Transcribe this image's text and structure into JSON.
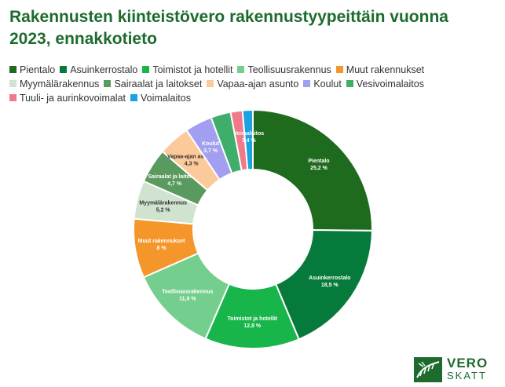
{
  "chart_data": {
    "type": "pie",
    "title": "Rakennusten kiinteistövero rakennustyypeittäin vuonna 2023, ennakkotieto",
    "legend_position": "top",
    "donut": true,
    "slices": [
      {
        "name": "Pientalo",
        "value": 25.2,
        "label": "25,2 %",
        "color": "#1e6b1e",
        "text_color": "#ffffff"
      },
      {
        "name": "Asuinkerrostalo",
        "value": 18.5,
        "label": "18,5 %",
        "color": "#067a3a",
        "text_color": "#ffffff"
      },
      {
        "name": "Toimistot ja hotellit",
        "value": 12.8,
        "label": "12,8 %",
        "color": "#17b54a",
        "text_color": "#ffffff"
      },
      {
        "name": "Teollisuusrakennus",
        "value": 11.9,
        "label": "11,9 %",
        "color": "#74cf8e",
        "text_color": "#ffffff"
      },
      {
        "name": "Muut rakennukset",
        "value": 8,
        "label": "8 %",
        "color": "#f5962b",
        "text_color": "#ffffff"
      },
      {
        "name": "Myymälärakennus",
        "value": 5.2,
        "label": "5,2 %",
        "color": "#cfe3cf",
        "text_color": "#333333"
      },
      {
        "name": "Sairaalat ja laitokset",
        "value": 4.7,
        "label": "4,7 %",
        "color": "#5a9a5e",
        "text_color": "#ffffff"
      },
      {
        "name": "Vapaa-ajan asunto",
        "value": 4.3,
        "label": "4,3 %",
        "color": "#fcc99a",
        "text_color": "#333333"
      },
      {
        "name": "Koulut",
        "value": 3.7,
        "label": "3,7 %",
        "color": "#a29ff0",
        "text_color": "#ffffff"
      },
      {
        "name": "Vesivoimalaitos",
        "value": 2.7,
        "label": "",
        "color": "#3fae6a",
        "text_color": "#ffffff"
      },
      {
        "name": "Tuuli- ja aurinkovoimalat",
        "value": 1.6,
        "label": "",
        "color": "#f07a8a",
        "text_color": "#ffffff"
      },
      {
        "name": "Voimalaitos",
        "value": 1.4,
        "label": "1,4 %",
        "color": "#1aa3e0",
        "text_color": "#ffffff"
      }
    ]
  },
  "logo": {
    "line1": "VERO",
    "line2": "SKATT",
    "color": "#1e6b2e"
  }
}
